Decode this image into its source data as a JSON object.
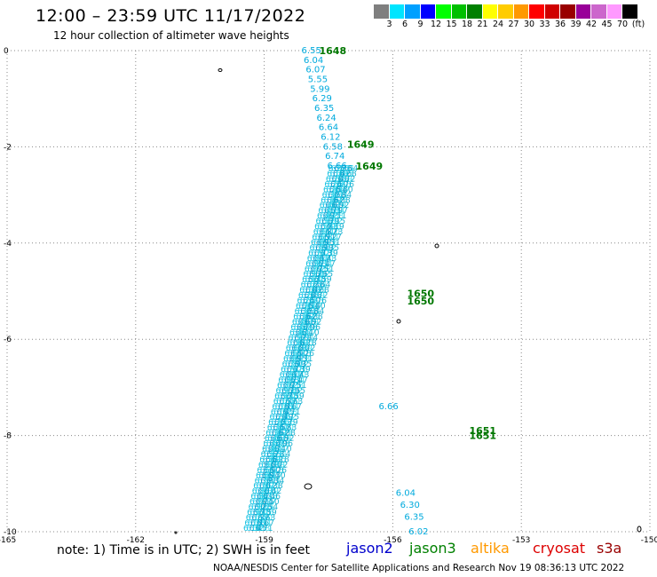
{
  "header": {
    "title": "12:00 – 23:59 UTC 11/17/2022",
    "subtitle": "12 hour collection of altimeter wave heights"
  },
  "colorbar": {
    "swatches": [
      "#7f7f7f",
      "#00e5ff",
      "#00a0ff",
      "#0000ff",
      "#00ff00",
      "#00c000",
      "#008000",
      "#ffff00",
      "#ffcc00",
      "#ff9900",
      "#ff0000",
      "#d00000",
      "#990000",
      "#990099",
      "#cc66cc",
      "#ff99ff",
      "#000000"
    ],
    "labels": [
      "3",
      "6",
      "9",
      "12",
      "15",
      "18",
      "21",
      "24",
      "27",
      "30",
      "33",
      "36",
      "39",
      "42",
      "45",
      "70",
      "(ft)"
    ]
  },
  "footer": {
    "note": "note:  1) Time is in UTC;  2) SWH is in feet",
    "satellites": [
      {
        "name": "jason2",
        "color": "#0000cc"
      },
      {
        "name": "jason3",
        "color": "#008000"
      },
      {
        "name": "altika",
        "color": "#ff9900"
      },
      {
        "name": "cryosat",
        "color": "#dd0000"
      },
      {
        "name": "s3a",
        "color": "#990000"
      }
    ],
    "credit": "NOAA/NESDIS Center for Satellite Applications and Research    Nov 19 08:36:13 UTC 2022"
  },
  "chart_data": {
    "type": "scatter",
    "title": "12:00 – 23:59 UTC 11/17/2022",
    "xlim": [
      -165,
      -150
    ],
    "ylim": [
      -10,
      0
    ],
    "x_ticks": [
      "-165",
      "-162",
      "-159",
      "-156",
      "-153",
      "-150"
    ],
    "y_ticks": [
      "0",
      "-2",
      "-4",
      "-6",
      "-8",
      "-10"
    ],
    "x_tick_values": [
      -165,
      -162,
      -159,
      -156,
      -153,
      -150
    ],
    "y_tick_values": [
      0,
      -2,
      -4,
      -6,
      -8,
      -10
    ],
    "grid": true,
    "track_color": "#00aadd",
    "time_color": "#007700",
    "swh_points": [
      {
        "lon": -157.9,
        "lat": 0.0,
        "swh": "6.55"
      },
      {
        "lon": -157.85,
        "lat": -0.2,
        "swh": "6.04"
      },
      {
        "lon": -157.8,
        "lat": -0.4,
        "swh": "6.07"
      },
      {
        "lon": -157.75,
        "lat": -0.6,
        "swh": "5.55"
      },
      {
        "lon": -157.7,
        "lat": -0.8,
        "swh": "5.99"
      },
      {
        "lon": -157.65,
        "lat": -1.0,
        "swh": "6.29"
      },
      {
        "lon": -157.6,
        "lat": -1.2,
        "swh": "6.35"
      },
      {
        "lon": -157.55,
        "lat": -1.4,
        "swh": "6.24"
      },
      {
        "lon": -157.5,
        "lat": -1.6,
        "swh": "6.64"
      },
      {
        "lon": -157.45,
        "lat": -1.8,
        "swh": "6.12"
      },
      {
        "lon": -157.4,
        "lat": -2.0,
        "swh": "6.58"
      },
      {
        "lon": -157.35,
        "lat": -2.2,
        "swh": "6.74"
      },
      {
        "lon": -157.3,
        "lat": -2.4,
        "swh": "6.66"
      },
      {
        "lon": -156.1,
        "lat": -7.4,
        "swh": "6.66"
      },
      {
        "lon": -155.7,
        "lat": -9.2,
        "swh": "6.04"
      },
      {
        "lon": -155.6,
        "lat": -9.45,
        "swh": "6.30"
      },
      {
        "lon": -155.5,
        "lat": -9.7,
        "swh": "6.35"
      },
      {
        "lon": -155.4,
        "lat": -10.0,
        "swh": "6.02"
      }
    ],
    "time_labels": [
      {
        "lon": -157.4,
        "lat": 0.0,
        "text": "1648"
      },
      {
        "lon": -156.75,
        "lat": -1.95,
        "text": "1649"
      },
      {
        "lon": -156.55,
        "lat": -2.4,
        "text": "1649"
      },
      {
        "lon": -155.35,
        "lat": -5.05,
        "text": "1650"
      },
      {
        "lon": -155.35,
        "lat": -5.2,
        "text": "1650"
      },
      {
        "lon": -153.9,
        "lat": -7.9,
        "text": "1651"
      },
      {
        "lon": -153.9,
        "lat": -8.0,
        "text": "1651"
      }
    ]
  }
}
